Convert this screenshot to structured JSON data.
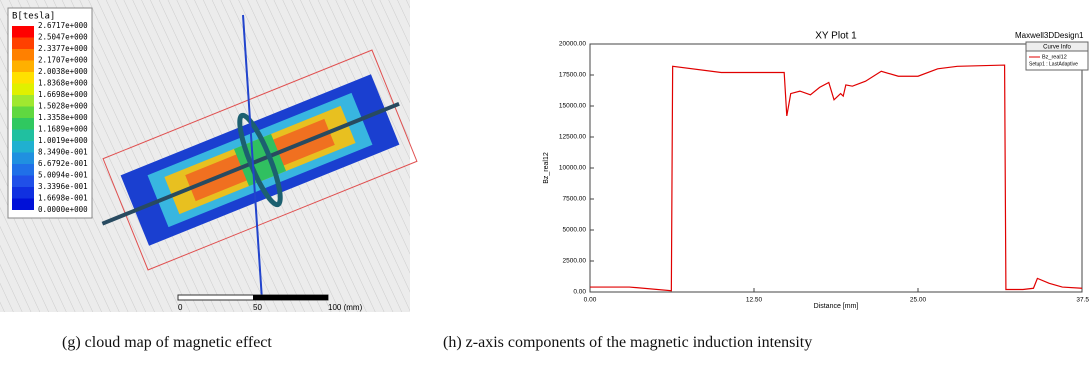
{
  "left_panel": {
    "legend_title": "B[tesla]",
    "legend_labels": [
      "2.6717e+000",
      "2.5047e+000",
      "2.3377e+000",
      "2.1707e+000",
      "2.0038e+000",
      "1.8368e+000",
      "1.6698e+000",
      "1.5028e+000",
      "1.3358e+000",
      "1.1689e+000",
      "1.0019e+000",
      "8.3490e-001",
      "6.6792e-001",
      "5.0094e-001",
      "3.3396e-001",
      "1.6698e-001",
      "0.0000e+000"
    ],
    "scale_labels": [
      "0",
      "50",
      "100 (mm)"
    ]
  },
  "chart_data": {
    "type": "line",
    "title": "XY Plot 1",
    "design_label": "Maxwell3DDesign1",
    "legend_title": "Curve Info",
    "legend_subtitle": "Setup1 : LastAdaptive",
    "x_label": "Distance [mm]",
    "y_label": "Bz_real12",
    "x": [
      0,
      3,
      6.2,
      6.3,
      10,
      14.8,
      15.0,
      15.3,
      16,
      16.8,
      17.5,
      18.2,
      18.6,
      19.1,
      19.3,
      19.5,
      20,
      21,
      22.2,
      23.5,
      25,
      26.5,
      28,
      31.6,
      31.7,
      33,
      33.8,
      34.1,
      35,
      36,
      37.5
    ],
    "series": [
      {
        "name": "Bz_real12",
        "color": "#e00000",
        "values": [
          400,
          400,
          100,
          18200,
          17700,
          17700,
          14200,
          16000,
          16200,
          15900,
          16500,
          16900,
          15500,
          16000,
          15800,
          16700,
          16600,
          17000,
          17800,
          17400,
          17400,
          18000,
          18200,
          18300,
          200,
          200,
          300,
          1100,
          700,
          400,
          300
        ]
      }
    ],
    "xlim": [
      0,
      37.5
    ],
    "ylim": [
      0,
      20000
    ],
    "xticks": [
      {
        "value": 0,
        "label": "0.00"
      },
      {
        "value": 12.5,
        "label": "12.50"
      },
      {
        "value": 25,
        "label": "25.00"
      },
      {
        "value": 37.5,
        "label": "37.5"
      }
    ],
    "yticks": [
      {
        "value": 0,
        "label": "0.00"
      },
      {
        "value": 2500,
        "label": "2500.00"
      },
      {
        "value": 5000,
        "label": "5000.00"
      },
      {
        "value": 7500,
        "label": "7500.00"
      },
      {
        "value": 10000,
        "label": "10000.00"
      },
      {
        "value": 12500,
        "label": "12500.00"
      },
      {
        "value": 15000,
        "label": "15000.00"
      },
      {
        "value": 17500,
        "label": "17500.00"
      },
      {
        "value": 20000,
        "label": "20000.00"
      }
    ]
  },
  "captions": [
    "(g) cloud map of magnetic effect",
    "(h) z-axis components of the magnetic induction intensity"
  ]
}
